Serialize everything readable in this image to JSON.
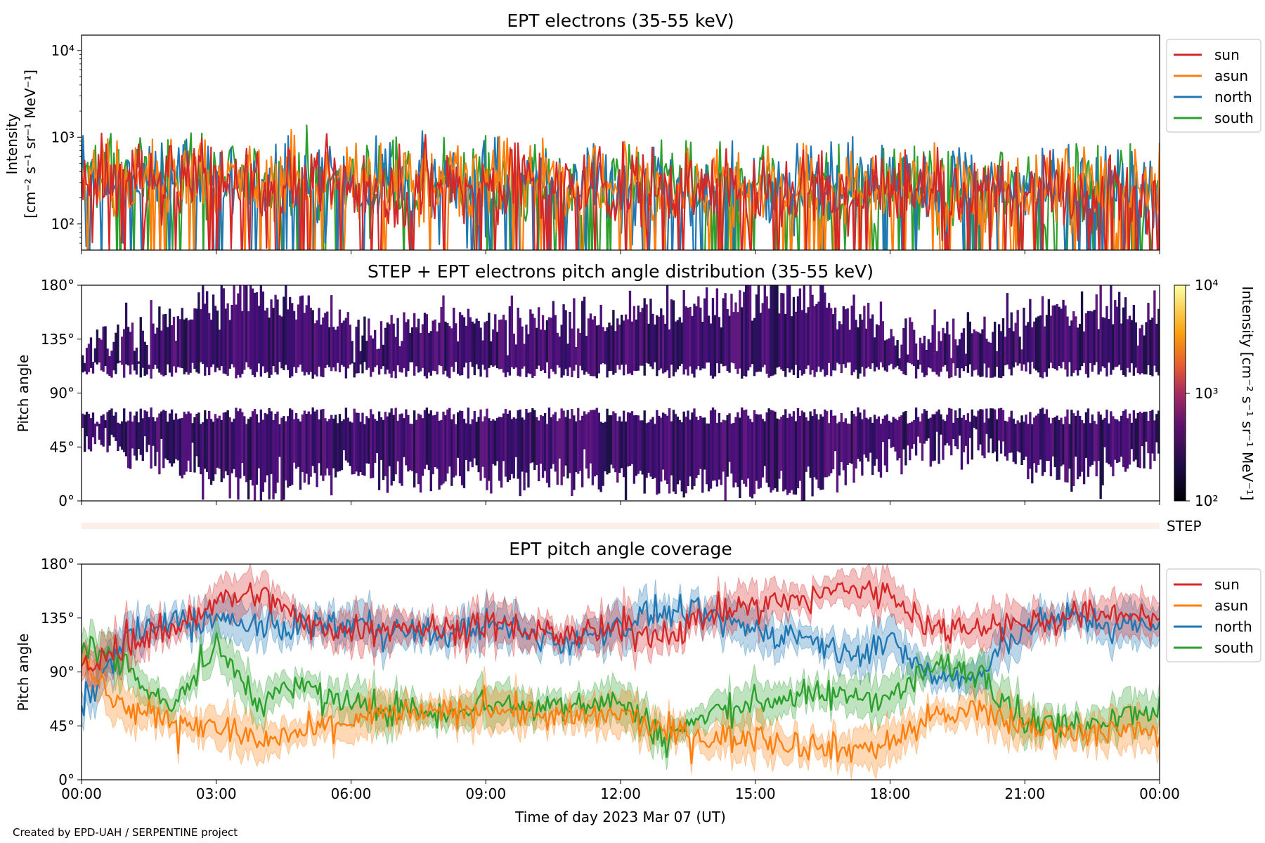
{
  "figure": {
    "footer": "Created by EPD-UAH / SERPENTINE project",
    "xlabel": "Time of day 2023 Mar 07 (UT)",
    "xticks": [
      "00:00",
      "03:00",
      "06:00",
      "09:00",
      "12:00",
      "15:00",
      "18:00",
      "21:00",
      "00:00"
    ]
  },
  "panels": {
    "intensity": {
      "title": "EPT electrons (35-55 keV)",
      "ylabel1": "Intensity",
      "ylabel2": "[cm⁻² s⁻¹ sr⁻¹ MeV⁻¹]",
      "yticks": [
        "10²",
        "10³",
        "10⁴"
      ],
      "legend": [
        "sun",
        "asun",
        "north",
        "south"
      ]
    },
    "pad": {
      "title": "STEP + EPT electrons pitch angle distribution (35-55 keV)",
      "ylabel": "Pitch angle",
      "yticks": [
        "0°",
        "45°",
        "90°",
        "135°",
        "180°"
      ],
      "colorbar": {
        "ticks": [
          "10²",
          "10³",
          "10⁴"
        ],
        "label": "Intensity [cm⁻² s⁻¹ sr⁻¹ MeV⁻¹]",
        "colormap": "plasma"
      }
    },
    "step": {
      "label": "STEP"
    },
    "coverage": {
      "title": "EPT pitch angle coverage",
      "ylabel": "Pitch angle",
      "yticks": [
        "0°",
        "45°",
        "90°",
        "135°",
        "180°"
      ],
      "legend": [
        "sun",
        "asun",
        "north",
        "south"
      ]
    }
  },
  "colors": {
    "sun": "#d62728",
    "asun": "#ff7f0e",
    "north": "#1f77b4",
    "south": "#2ca02c"
  },
  "chart_data": [
    {
      "type": "line",
      "title": "EPT electrons (35-55 keV)",
      "ylabel": "Intensity [cm⁻² s⁻¹ sr⁻¹ MeV⁻¹]",
      "yscale": "log",
      "ylim": [
        50,
        15000
      ],
      "xlim": [
        "2023-03-07 00:00",
        "2023-03-08 00:00"
      ],
      "legend_position": "outside-right",
      "x": [
        "00:00",
        "03:00",
        "06:00",
        "09:00",
        "12:00",
        "15:00",
        "18:00",
        "21:00",
        "24:00"
      ],
      "series": [
        {
          "name": "sun",
          "values": [
            320,
            300,
            280,
            270,
            260,
            250,
            240,
            230,
            210
          ]
        },
        {
          "name": "asun",
          "values": [
            330,
            310,
            300,
            290,
            270,
            260,
            250,
            230,
            220
          ]
        },
        {
          "name": "north",
          "values": [
            340,
            320,
            300,
            290,
            270,
            260,
            250,
            240,
            230
          ]
        },
        {
          "name": "south",
          "values": [
            350,
            320,
            300,
            280,
            270,
            260,
            250,
            240,
            240
          ]
        }
      ]
    },
    {
      "type": "heatmap",
      "title": "STEP + EPT electrons pitch angle distribution (35-55 keV)",
      "ylabel": "Pitch angle",
      "ylim": [
        0,
        180
      ],
      "zscale": "log",
      "zlim": [
        100,
        10000
      ],
      "x": [
        "00:00",
        "02:00",
        "04:00",
        "06:00",
        "08:00",
        "10:00",
        "12:00",
        "14:00",
        "16:00",
        "18:00",
        "20:00",
        "22:00",
        "24:00"
      ],
      "coverage_top_deg": [
        130,
        150,
        170,
        145,
        150,
        150,
        155,
        165,
        175,
        140,
        140,
        165,
        150
      ],
      "coverage_bottom_deg": [
        55,
        30,
        10,
        25,
        20,
        20,
        20,
        15,
        10,
        40,
        45,
        20,
        40
      ]
    },
    {
      "type": "line",
      "title": "EPT pitch angle coverage",
      "ylabel": "Pitch angle",
      "ylim": [
        0,
        180
      ],
      "legend_position": "outside-right",
      "x": [
        "00:00",
        "01:00",
        "02:00",
        "03:00",
        "04:00",
        "05:00",
        "06:00",
        "07:00",
        "08:00",
        "09:00",
        "10:00",
        "11:00",
        "12:00",
        "13:00",
        "14:00",
        "15:00",
        "16:00",
        "17:00",
        "18:00",
        "19:00",
        "20:00",
        "21:00",
        "22:00",
        "23:00",
        "24:00"
      ],
      "series": [
        {
          "name": "sun",
          "values": [
            90,
            115,
            125,
            150,
            155,
            130,
            125,
            130,
            125,
            130,
            125,
            120,
            125,
            120,
            140,
            145,
            150,
            160,
            155,
            125,
            130,
            130,
            135,
            140,
            135
          ]
        },
        {
          "name": "asun",
          "values": [
            95,
            60,
            50,
            45,
            30,
            40,
            50,
            55,
            55,
            60,
            55,
            50,
            55,
            40,
            35,
            35,
            30,
            25,
            30,
            55,
            55,
            45,
            40,
            40,
            40
          ]
        },
        {
          "name": "north",
          "values": [
            60,
            120,
            130,
            135,
            125,
            130,
            130,
            125,
            120,
            130,
            120,
            115,
            130,
            140,
            135,
            125,
            120,
            105,
            115,
            85,
            85,
            130,
            135,
            130,
            125
          ]
        },
        {
          "name": "south",
          "values": [
            115,
            95,
            60,
            110,
            65,
            80,
            60,
            60,
            55,
            65,
            60,
            65,
            65,
            35,
            55,
            65,
            70,
            70,
            70,
            95,
            90,
            50,
            45,
            55,
            60
          ]
        }
      ]
    }
  ]
}
